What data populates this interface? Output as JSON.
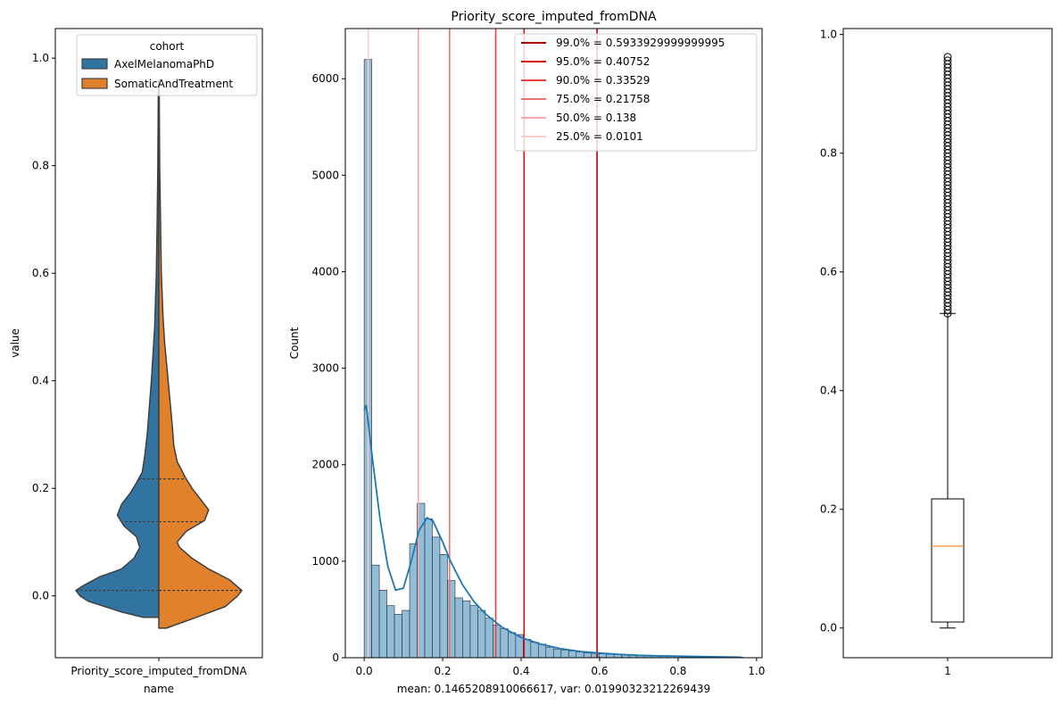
{
  "chart_data": [
    {
      "type": "violin",
      "title": "",
      "xlabel": "name",
      "ylabel": "value",
      "categories": [
        "Priority_score_imputed_fromDNA"
      ],
      "ylim": [
        -0.115,
        1.055
      ],
      "yticks": [
        0.0,
        0.2,
        0.4,
        0.6,
        0.8,
        1.0
      ],
      "ytick_labels": [
        "0.0",
        "0.2",
        "0.4",
        "0.6",
        "0.8",
        "1.0"
      ],
      "legend": {
        "title": "cohort",
        "placement": "top-right",
        "entries": [
          "AxelMelanomaPhD",
          "SomaticAndTreatment"
        ]
      },
      "series": [
        {
          "name": "AxelMelanomaPhD",
          "color": "#3274a1",
          "side": "left",
          "quartiles": [
            0.0101,
            0.138,
            0.21758
          ],
          "profile": [
            [
              -0.04,
              0.19
            ],
            [
              -0.03,
              0.45
            ],
            [
              -0.01,
              0.85
            ],
            [
              0.0,
              0.95
            ],
            [
              0.01,
              1.0
            ],
            [
              0.02,
              0.9
            ],
            [
              0.035,
              0.72
            ],
            [
              0.05,
              0.45
            ],
            [
              0.07,
              0.3
            ],
            [
              0.09,
              0.23
            ],
            [
              0.11,
              0.27
            ],
            [
              0.13,
              0.42
            ],
            [
              0.15,
              0.5
            ],
            [
              0.17,
              0.45
            ],
            [
              0.19,
              0.35
            ],
            [
              0.21,
              0.27
            ],
            [
              0.23,
              0.2
            ],
            [
              0.26,
              0.17
            ],
            [
              0.3,
              0.14
            ],
            [
              0.35,
              0.115
            ],
            [
              0.4,
              0.09
            ],
            [
              0.45,
              0.07
            ],
            [
              0.5,
              0.05
            ],
            [
              0.6,
              0.03
            ],
            [
              0.7,
              0.02
            ],
            [
              0.8,
              0.012
            ],
            [
              0.9,
              0.008
            ],
            [
              0.96,
              0.005
            ]
          ]
        },
        {
          "name": "SomaticAndTreatment",
          "color": "#e1812c",
          "side": "right",
          "quartiles": [
            0.0101,
            0.138,
            0.21758
          ],
          "profile": [
            [
              -0.06,
              0.09
            ],
            [
              -0.04,
              0.45
            ],
            [
              -0.02,
              0.8
            ],
            [
              0.0,
              0.95
            ],
            [
              0.01,
              1.0
            ],
            [
              0.03,
              0.85
            ],
            [
              0.05,
              0.6
            ],
            [
              0.07,
              0.4
            ],
            [
              0.09,
              0.25
            ],
            [
              0.1,
              0.22
            ],
            [
              0.12,
              0.33
            ],
            [
              0.14,
              0.55
            ],
            [
              0.16,
              0.6
            ],
            [
              0.18,
              0.5
            ],
            [
              0.2,
              0.4
            ],
            [
              0.22,
              0.32
            ],
            [
              0.25,
              0.22
            ],
            [
              0.28,
              0.18
            ],
            [
              0.32,
              0.16
            ],
            [
              0.37,
              0.13
            ],
            [
              0.42,
              0.1
            ],
            [
              0.47,
              0.07
            ],
            [
              0.52,
              0.05
            ],
            [
              0.6,
              0.03
            ],
            [
              0.7,
              0.02
            ],
            [
              0.8,
              0.01
            ],
            [
              0.9,
              0.006
            ],
            [
              0.96,
              0.004
            ]
          ]
        }
      ]
    },
    {
      "type": "histogram",
      "title": "Priority_score_imputed_fromDNA",
      "xlabel": "mean: 0.1465208910066617, var: 0.01990323212269439",
      "ylabel": "Count",
      "xlim": [
        -0.048,
        1.014
      ],
      "ylim": [
        0,
        6520
      ],
      "xticks": [
        0.0,
        0.2,
        0.4,
        0.6,
        0.8,
        1.0
      ],
      "xtick_labels": [
        "0.0",
        "0.2",
        "0.4",
        "0.6",
        "0.8",
        "1.0"
      ],
      "yticks": [
        0,
        1000,
        2000,
        3000,
        4000,
        5000,
        6000
      ],
      "ytick_labels": [
        "0",
        "1000",
        "2000",
        "3000",
        "4000",
        "5000",
        "6000"
      ],
      "bin_start": 0.0,
      "bin_width": 0.0193,
      "counts": [
        6200,
        960,
        700,
        540,
        450,
        490,
        1180,
        1600,
        1440,
        1250,
        1070,
        800,
        620,
        590,
        540,
        490,
        410,
        340,
        300,
        260,
        240,
        190,
        160,
        140,
        110,
        90,
        80,
        70,
        60,
        50,
        45,
        40,
        35,
        32,
        30,
        25,
        22,
        20,
        18,
        15,
        13,
        12,
        10,
        10,
        8,
        8,
        7,
        6,
        5,
        5
      ],
      "bar_color": "#92bdd9",
      "kde_color": "#1f77b4",
      "kde": [
        [
          0.0,
          2560
        ],
        [
          0.005,
          2620
        ],
        [
          0.01,
          2450
        ],
        [
          0.02,
          2100
        ],
        [
          0.04,
          1450
        ],
        [
          0.06,
          950
        ],
        [
          0.08,
          700
        ],
        [
          0.1,
          720
        ],
        [
          0.12,
          1000
        ],
        [
          0.14,
          1320
        ],
        [
          0.16,
          1450
        ],
        [
          0.175,
          1420
        ],
        [
          0.2,
          1200
        ],
        [
          0.22,
          1000
        ],
        [
          0.25,
          760
        ],
        [
          0.28,
          580
        ],
        [
          0.31,
          450
        ],
        [
          0.35,
          320
        ],
        [
          0.4,
          210
        ],
        [
          0.45,
          140
        ],
        [
          0.5,
          95
        ],
        [
          0.55,
          65
        ],
        [
          0.6,
          48
        ],
        [
          0.65,
          35
        ],
        [
          0.7,
          25
        ],
        [
          0.75,
          20
        ],
        [
          0.8,
          16
        ],
        [
          0.85,
          12
        ],
        [
          0.9,
          9
        ],
        [
          0.96,
          5
        ]
      ],
      "quantile_lines": [
        {
          "label": "99.0% = 0.5933929999999995",
          "value": 0.593393,
          "color": "#b30000"
        },
        {
          "label": "95.0% = 0.40752",
          "value": 0.40752,
          "color": "#dc1010"
        },
        {
          "label": "90.0% = 0.33529",
          "value": 0.33529,
          "color": "#ec4040"
        },
        {
          "label": "75.0% = 0.21758",
          "value": 0.21758,
          "color": "#f07070"
        },
        {
          "label": "50.0% = 0.138",
          "value": 0.138,
          "color": "#f6a8a8"
        },
        {
          "label": "25.0% = 0.0101",
          "value": 0.0101,
          "color": "#f9cccc"
        }
      ],
      "legend": {
        "placement": "top-right"
      }
    },
    {
      "type": "box",
      "title": "",
      "categories": [
        "1"
      ],
      "ylim": [
        -0.05,
        1.01
      ],
      "yticks": [
        0.0,
        0.2,
        0.4,
        0.6,
        0.8,
        1.0
      ],
      "ytick_labels": [
        "0.0",
        "0.2",
        "0.4",
        "0.6",
        "0.8",
        "1.0"
      ],
      "whisker_low": 0.0,
      "q1": 0.0101,
      "median": 0.138,
      "q3": 0.21758,
      "whisker_high": 0.53,
      "fliers_range": [
        0.53,
        0.965
      ],
      "median_color": "#ff7f0e"
    }
  ]
}
